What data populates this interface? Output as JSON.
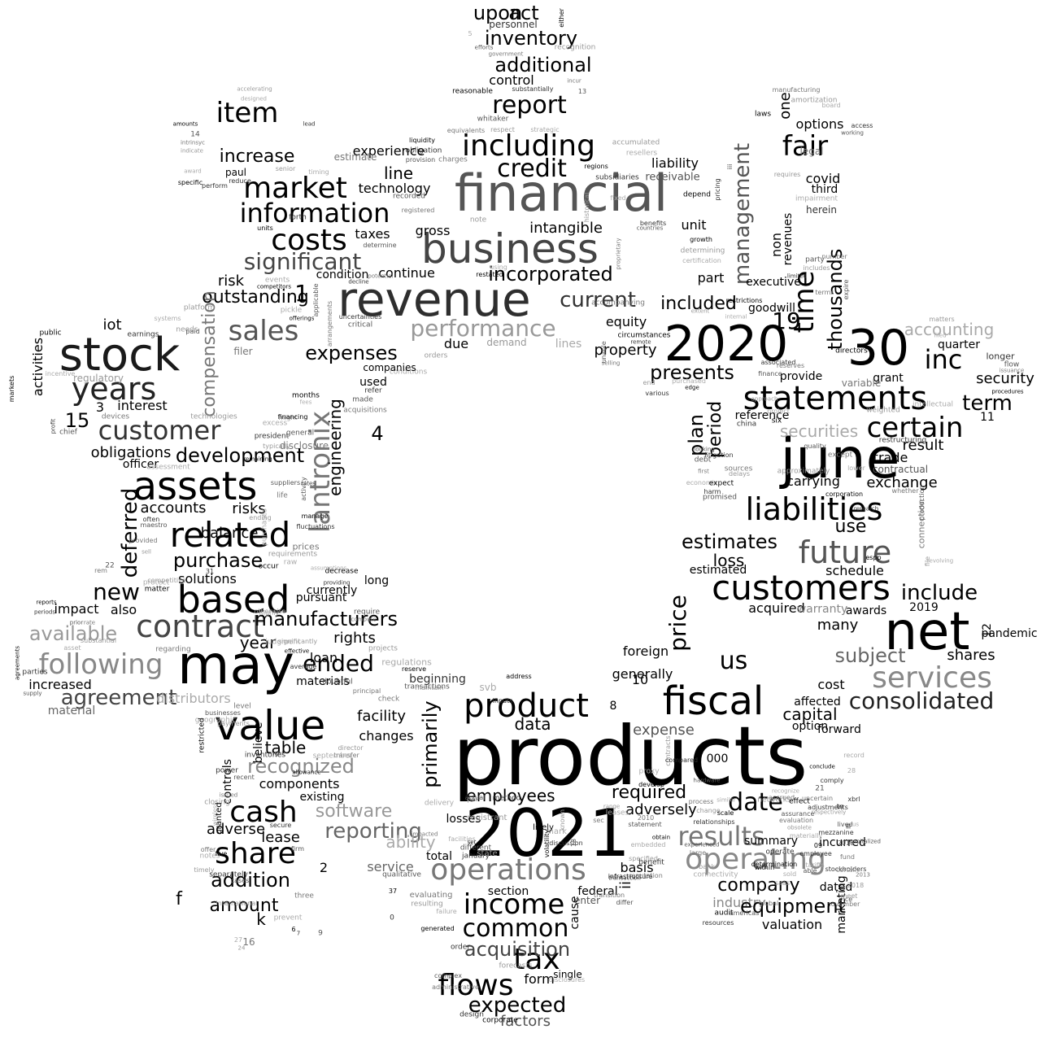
{
  "words": [
    {
      "t": "products",
      "c": "#000000"
    },
    {
      "t": "financial",
      "c": "#555555"
    },
    {
      "t": "revenue",
      "c": "#2e2e2e"
    },
    {
      "t": "business",
      "c": "#444444"
    },
    {
      "t": "2021",
      "c": "#000000"
    },
    {
      "t": "2020",
      "c": "#000000"
    },
    {
      "t": "30",
      "c": "#000000"
    },
    {
      "t": "june",
      "c": "#000000"
    },
    {
      "t": "stock",
      "c": "#1a1a1a"
    },
    {
      "t": "may",
      "c": "#000000"
    },
    {
      "t": "value",
      "c": "#000000"
    },
    {
      "t": "net",
      "c": "#000000"
    },
    {
      "t": "fiscal",
      "c": "#000000"
    },
    {
      "t": "assets",
      "c": "#000000"
    },
    {
      "t": "based",
      "c": "#000000"
    },
    {
      "t": "related",
      "c": "#000000"
    },
    {
      "t": "customers",
      "c": "#000000"
    },
    {
      "t": "statements",
      "c": "#000000"
    },
    {
      "t": "product",
      "c": "#000000"
    },
    {
      "t": "operations",
      "c": "#777777"
    },
    {
      "t": "operating",
      "c": "#888888"
    },
    {
      "t": "results",
      "c": "#777777"
    },
    {
      "t": "liabilities",
      "c": "#000000"
    },
    {
      "t": "future",
      "c": "#555555"
    },
    {
      "t": "income",
      "c": "#000000"
    },
    {
      "t": "cash",
      "c": "#000000"
    },
    {
      "t": "share",
      "c": "#000000"
    },
    {
      "t": "contract",
      "c": "#444444"
    },
    {
      "t": "following",
      "c": "#888888"
    },
    {
      "t": "services",
      "c": "#888888"
    },
    {
      "t": "consolidated",
      "c": "#222222"
    },
    {
      "t": "including",
      "c": "#000000"
    },
    {
      "t": "market",
      "c": "#000000"
    },
    {
      "t": "costs",
      "c": "#000000"
    },
    {
      "t": "information",
      "c": "#000000"
    },
    {
      "t": "significant",
      "c": "#444444"
    },
    {
      "t": "sales",
      "c": "#555555"
    },
    {
      "t": "performance",
      "c": "#999999"
    },
    {
      "t": "item",
      "c": "#000000"
    },
    {
      "t": "customer",
      "c": "#333333"
    },
    {
      "t": "years",
      "c": "#222222"
    },
    {
      "t": "lantronix",
      "c": "#777777"
    },
    {
      "t": "management",
      "c": "#555555"
    },
    {
      "t": "tax",
      "c": "#000000"
    },
    {
      "t": "common",
      "c": "#000000"
    },
    {
      "t": "report",
      "c": "#000000"
    },
    {
      "t": "fair",
      "c": "#000000"
    },
    {
      "t": "time",
      "c": "#000000"
    },
    {
      "t": "inc",
      "c": "#000000"
    },
    {
      "t": "term",
      "c": "#000000"
    },
    {
      "t": "certain",
      "c": "#000000"
    },
    {
      "t": "ended",
      "c": "#000000"
    },
    {
      "t": "credit",
      "c": "#000000"
    },
    {
      "t": "new",
      "c": "#000000"
    },
    {
      "t": "us",
      "c": "#000000"
    },
    {
      "t": "price",
      "c": "#000000"
    },
    {
      "t": "acquisition",
      "c": "#444444"
    },
    {
      "t": "date",
      "c": "#000000"
    },
    {
      "t": "current",
      "c": "#333333"
    },
    {
      "t": "expenses",
      "c": "#000000"
    },
    {
      "t": "addition",
      "c": "#000000"
    },
    {
      "t": "reporting",
      "c": "#666666"
    },
    {
      "t": "agreement",
      "c": "#444444"
    },
    {
      "t": "available",
      "c": "#999999"
    },
    {
      "t": "recognized",
      "c": "#888888"
    },
    {
      "t": "purchase",
      "c": "#000000"
    },
    {
      "t": "development",
      "c": "#000000"
    },
    {
      "t": "thousands",
      "c": "#000000"
    },
    {
      "t": "software",
      "c": "#999999"
    },
    {
      "t": "primarily",
      "c": "#000000"
    },
    {
      "t": "required",
      "c": "#000000"
    },
    {
      "t": "additional",
      "c": "#000000"
    },
    {
      "t": "inventory",
      "c": "#000000"
    },
    {
      "t": "expected",
      "c": "#000000"
    },
    {
      "t": "table",
      "c": "#000000"
    },
    {
      "t": "include",
      "c": "#000000"
    },
    {
      "t": "use",
      "c": "#000000"
    },
    {
      "t": "estimates",
      "c": "#000000"
    },
    {
      "t": "loss",
      "c": "#000000"
    },
    {
      "t": "amount",
      "c": "#000000"
    },
    {
      "t": "subject",
      "c": "#666666"
    },
    {
      "t": "capital",
      "c": "#000000"
    },
    {
      "t": "company",
      "c": "#000000"
    },
    {
      "t": "factors",
      "c": "#555555"
    },
    {
      "t": "outstanding",
      "c": "#000000"
    },
    {
      "t": "increase",
      "c": "#000000"
    },
    {
      "t": "compensation",
      "c": "#777777"
    },
    {
      "t": "deferred",
      "c": "#000000"
    },
    {
      "t": "lease",
      "c": "#000000"
    },
    {
      "t": "adverse",
      "c": "#000000"
    },
    {
      "t": "line",
      "c": "#000000"
    },
    {
      "t": "control",
      "c": "#000000"
    },
    {
      "t": "engineering",
      "c": "#000000"
    },
    {
      "t": "components",
      "c": "#000000"
    },
    {
      "t": "incorporated",
      "c": "#000000"
    },
    {
      "t": "included",
      "c": "#000000"
    },
    {
      "t": "plan",
      "c": "#000000"
    },
    {
      "t": "period",
      "c": "#000000"
    },
    {
      "t": "presents",
      "c": "#000000"
    },
    {
      "t": "accounting",
      "c": "#aaaaaa"
    },
    {
      "t": "security",
      "c": "#000000"
    },
    {
      "t": "employees",
      "c": "#000000"
    },
    {
      "t": "data",
      "c": "#000000"
    },
    {
      "t": "intangible",
      "c": "#000000"
    },
    {
      "t": "manufacturers",
      "c": "#000000"
    },
    {
      "t": "iot",
      "c": "#000000"
    },
    {
      "t": "activities",
      "c": "#000000"
    },
    {
      "t": "obligations",
      "c": "#000000"
    },
    {
      "t": "securities",
      "c": "#aaaaaa"
    },
    {
      "t": "result",
      "c": "#000000"
    },
    {
      "t": "exchange",
      "c": "#000000"
    },
    {
      "t": "shares",
      "c": "#000000"
    },
    {
      "t": "adversely",
      "c": "#000000"
    },
    {
      "t": "facility",
      "c": "#000000"
    },
    {
      "t": "changes",
      "c": "#000000"
    },
    {
      "t": "service",
      "c": "#666666"
    },
    {
      "t": "ability",
      "c": "#aaaaaa"
    },
    {
      "t": "expense",
      "c": "#555555"
    },
    {
      "t": "accounts",
      "c": "#000000"
    },
    {
      "t": "risks",
      "c": "#000000"
    },
    {
      "t": "balance",
      "c": "#000000"
    },
    {
      "t": "risk",
      "c": "#000000"
    },
    {
      "t": "rights",
      "c": "#000000"
    },
    {
      "t": "year",
      "c": "#000000"
    },
    {
      "t": "solutions",
      "c": "#000000"
    },
    {
      "t": "loan",
      "c": "#000000"
    },
    {
      "t": "increased",
      "c": "#000000"
    },
    {
      "t": "material",
      "c": "#666666"
    },
    {
      "t": "distributors",
      "c": "#aaaaaa"
    },
    {
      "t": "impact",
      "c": "#000000"
    },
    {
      "t": "also",
      "c": "#000000"
    },
    {
      "t": "officer",
      "c": "#000000"
    },
    {
      "t": "interest",
      "c": "#000000"
    },
    {
      "t": "generally",
      "c": "#000000"
    },
    {
      "t": "foreign",
      "c": "#000000"
    },
    {
      "t": "many",
      "c": "#000000"
    },
    {
      "t": "cost",
      "c": "#000000"
    },
    {
      "t": "liability",
      "c": "#000000"
    },
    {
      "t": "valuation",
      "c": "#000000"
    },
    {
      "t": "industry",
      "c": "#888888"
    },
    {
      "t": "basis",
      "c": "#000000"
    },
    {
      "t": "form",
      "c": "#000000"
    },
    {
      "t": "technology",
      "c": "#000000"
    },
    {
      "t": "taxes",
      "c": "#000000"
    },
    {
      "t": "gross",
      "c": "#000000"
    },
    {
      "t": "continue",
      "c": "#000000"
    },
    {
      "t": "condition",
      "c": "#000000"
    },
    {
      "t": "unit",
      "c": "#000000"
    },
    {
      "t": "part",
      "c": "#000000"
    },
    {
      "t": "equity",
      "c": "#000000"
    },
    {
      "t": "property",
      "c": "#000000"
    },
    {
      "t": "due",
      "c": "#000000"
    },
    {
      "t": "used",
      "c": "#000000"
    },
    {
      "t": "options",
      "c": "#000000"
    },
    {
      "t": "covid",
      "c": "#000000"
    },
    {
      "t": "third",
      "c": "#000000"
    },
    {
      "t": "quarter",
      "c": "#000000"
    },
    {
      "t": "schedule",
      "c": "#000000"
    },
    {
      "t": "estimated",
      "c": "#000000"
    },
    {
      "t": "acquired",
      "c": "#000000"
    },
    {
      "t": "warranty",
      "c": "#888888"
    },
    {
      "t": "awards",
      "c": "#000000"
    },
    {
      "t": "2019",
      "c": "#000000"
    },
    {
      "t": "pandemic",
      "c": "#000000"
    },
    {
      "t": "upon",
      "c": "#000000"
    },
    {
      "t": "act",
      "c": "#000000"
    },
    {
      "t": "19",
      "c": "#000000"
    },
    {
      "t": "10",
      "c": "#000000"
    },
    {
      "t": "experience",
      "c": "#000000"
    },
    {
      "t": "one",
      "c": "#000000"
    },
    {
      "t": "non",
      "c": "#000000"
    },
    {
      "t": "revenues",
      "c": "#000000"
    },
    {
      "t": "executive",
      "c": "#000000"
    },
    {
      "t": "goodwill",
      "c": "#000000"
    },
    {
      "t": "trade",
      "c": "#000000"
    },
    {
      "t": "carrying",
      "c": "#000000"
    },
    {
      "t": "reference",
      "c": "#000000"
    },
    {
      "t": "provide",
      "c": "#000000"
    },
    {
      "t": "grant",
      "c": "#000000"
    },
    {
      "t": "equipment",
      "c": "#000000"
    },
    {
      "t": "000",
      "c": "#000000"
    },
    {
      "t": "option",
      "c": "#000000"
    },
    {
      "t": "forward",
      "c": "#000000"
    },
    {
      "t": "affected",
      "c": "#000000"
    },
    {
      "t": "losses",
      "c": "#000000"
    },
    {
      "t": "total",
      "c": "#000000"
    },
    {
      "t": "section",
      "c": "#000000"
    },
    {
      "t": "federal",
      "c": "#000000"
    },
    {
      "t": "cause",
      "c": "#000000"
    },
    {
      "t": "single",
      "c": "#000000"
    },
    {
      "t": "long",
      "c": "#000000"
    },
    {
      "t": "pursuant",
      "c": "#000000"
    },
    {
      "t": "currently",
      "c": "#000000"
    },
    {
      "t": "materials",
      "c": "#000000"
    },
    {
      "t": "believe",
      "c": "#000000"
    },
    {
      "t": "existing",
      "c": "#000000"
    },
    {
      "t": "controls",
      "c": "#000000"
    },
    {
      "t": "incurred",
      "c": "#000000"
    },
    {
      "t": "summary",
      "c": "#000000"
    },
    {
      "t": "dated",
      "c": "#000000"
    },
    {
      "t": "marketing",
      "c": "#000000"
    },
    {
      "t": "flows",
      "c": "#000000"
    },
    {
      "t": "1",
      "c": "#000000"
    },
    {
      "t": "2",
      "c": "#000000"
    },
    {
      "t": "3",
      "c": "#000000"
    },
    {
      "t": "4",
      "c": "#000000"
    },
    {
      "t": "8",
      "c": "#000000"
    },
    {
      "t": "12",
      "c": "#000000"
    },
    {
      "t": "11",
      "c": "#000000"
    },
    {
      "t": "15",
      "c": "#000000"
    },
    {
      "t": "f",
      "c": "#000000"
    },
    {
      "t": "k",
      "c": "#000000"
    },
    {
      "t": "ii",
      "c": "#000000"
    },
    {
      "t": "u",
      "c": "#000000"
    }
  ],
  "small_words": [
    "either",
    "personnel",
    "efforts",
    "government",
    "recognition",
    "5",
    "reasonable",
    "substantially",
    "13",
    "incur",
    "accelerating",
    "designed",
    "amounts",
    "lead",
    "14",
    "intrinsyc",
    "indicate",
    "award",
    "specific",
    "perform",
    "whitaker",
    "equivalents",
    "respect",
    "strategic",
    "liquidity",
    "obligation",
    "provision",
    "charges",
    "accumulated",
    "resellers",
    "regions",
    "subsidiaries",
    "receivable",
    "estimate",
    "senior",
    "timing",
    "paul",
    "reduce",
    "recorded",
    "registered",
    "historical",
    "fixed",
    "depend",
    "pricing",
    "iii",
    "manufacturing",
    "amortization",
    "board",
    "laws",
    "access",
    "working",
    "legal",
    "requires",
    "impairment",
    "units",
    "forth",
    "determine",
    "potential",
    "note",
    "using",
    "restated",
    "benefits",
    "countries",
    "proprietary",
    "determining",
    "certification",
    "growth",
    "herein",
    "party",
    "number",
    "includes",
    "events",
    "competitors",
    "decline",
    "applicable",
    "accompanying",
    "extent",
    "internal",
    "restrictions",
    "limited",
    "expire",
    "terms",
    "platform",
    "pickle",
    "offerings",
    "uncertainties",
    "critical",
    "arrangements",
    "demand",
    "lines",
    "circumstances",
    "remote",
    "unable",
    "selling",
    "end",
    "purchased",
    "edge",
    "associated",
    "finance",
    "reserves",
    "matters",
    "filed",
    "directors",
    "longer",
    "flow",
    "issuance",
    "needs",
    "systems",
    "public",
    "earnings",
    "paid",
    "filer",
    "orders",
    "conditions",
    "companies",
    "refer",
    "made",
    "acquisitions",
    "might",
    "fees",
    "months",
    "various",
    "looking",
    "first",
    "approach",
    "project",
    "six",
    "china",
    "quality",
    "variable",
    "weighted",
    "intellectual",
    "procedures",
    "restructuring",
    "contractual",
    "whether",
    "regulatory",
    "incentive",
    "markets",
    "profit",
    "chief",
    "devices",
    "technologies",
    "excess",
    "financing",
    "president",
    "general",
    "disclosure",
    "typically",
    "assessment",
    "remaining",
    "litigation",
    "debt",
    "sources",
    "delays",
    "economic",
    "expect",
    "harm",
    "promised",
    "except",
    "approximately",
    "lower",
    "corporation",
    "research",
    "production",
    "connection",
    "file",
    "revolving",
    "espp",
    "rates",
    "suppliers",
    "life",
    "ending",
    "purchases",
    "manage",
    "fluctuations",
    "activity",
    "prices",
    "requirements",
    "raw",
    "occur",
    "31",
    "22",
    "rem",
    "competitive",
    "protect",
    "matter",
    "often",
    "maestro",
    "provided",
    "sell",
    "assumptions",
    "decrease",
    "providing",
    "require",
    "compute",
    "otherwise",
    "highly",
    "reports",
    "periods",
    "prior",
    "rate",
    "substantial",
    "asset",
    "agreements",
    "parties",
    "supply",
    "regarding",
    "significantly",
    "judgment",
    "effective",
    "average",
    "doubtful",
    "principal",
    "projects",
    "regulations",
    "reserve",
    "beginning",
    "transactions",
    "check",
    "maintain",
    "svb",
    "address",
    "inputs",
    "businesses",
    "level",
    "payments",
    "geographic",
    "restricted",
    "inventories",
    "right",
    "transfer",
    "director",
    "september",
    "allowance",
    "power",
    "recent",
    "issued",
    "closing",
    "wireless",
    "granted",
    "secure",
    "firm",
    "offer",
    "timely",
    "notes",
    "five",
    "separately",
    "cases",
    "three",
    "international",
    "prevent",
    "6",
    "7",
    "9",
    "16",
    "24",
    "27",
    "37",
    "0",
    "qualitative",
    "evaluating",
    "resulting",
    "failure",
    "generated",
    "order",
    "complex",
    "administrative",
    "forecasts",
    "disclosures",
    "corporate",
    "design",
    "enter",
    "transition",
    "known",
    "mark",
    "likely",
    "method",
    "actual",
    "per",
    "registrant",
    "delivery",
    "set",
    "january",
    "different",
    "impacted",
    "state",
    "facilities",
    "volatility",
    "discussion",
    "18",
    "sec",
    "range",
    "leases",
    "infrastructure",
    "transaction",
    "statement",
    "reputation",
    "specified",
    "embedded",
    "obtain",
    "benefit",
    "differ",
    "2010",
    "contracts",
    "proxy",
    "develop",
    "compared",
    "hardware",
    "process",
    "change",
    "similar",
    "scale",
    "relationships",
    "experienced",
    "large",
    "bank",
    "connectivity",
    "audit",
    "resources",
    "americas",
    "global",
    "saas",
    "sold",
    "within",
    "operate",
    "assurance",
    "evaluation",
    "obsolete",
    "materially",
    "09",
    "stockholders",
    "vice",
    "november",
    "meet",
    "tariffs",
    "determination",
    "employee",
    "able",
    "accrued",
    "networks",
    "recognize",
    "effect",
    "adjustments",
    "lived",
    "fund",
    "certain",
    "record",
    "conclude",
    "comply",
    "21",
    "uncertain",
    "respectively",
    "28",
    "tn",
    "mezzanine",
    "2016",
    "2013",
    "2018",
    "psus",
    "iii",
    "xbrl",
    "capitalized"
  ]
}
